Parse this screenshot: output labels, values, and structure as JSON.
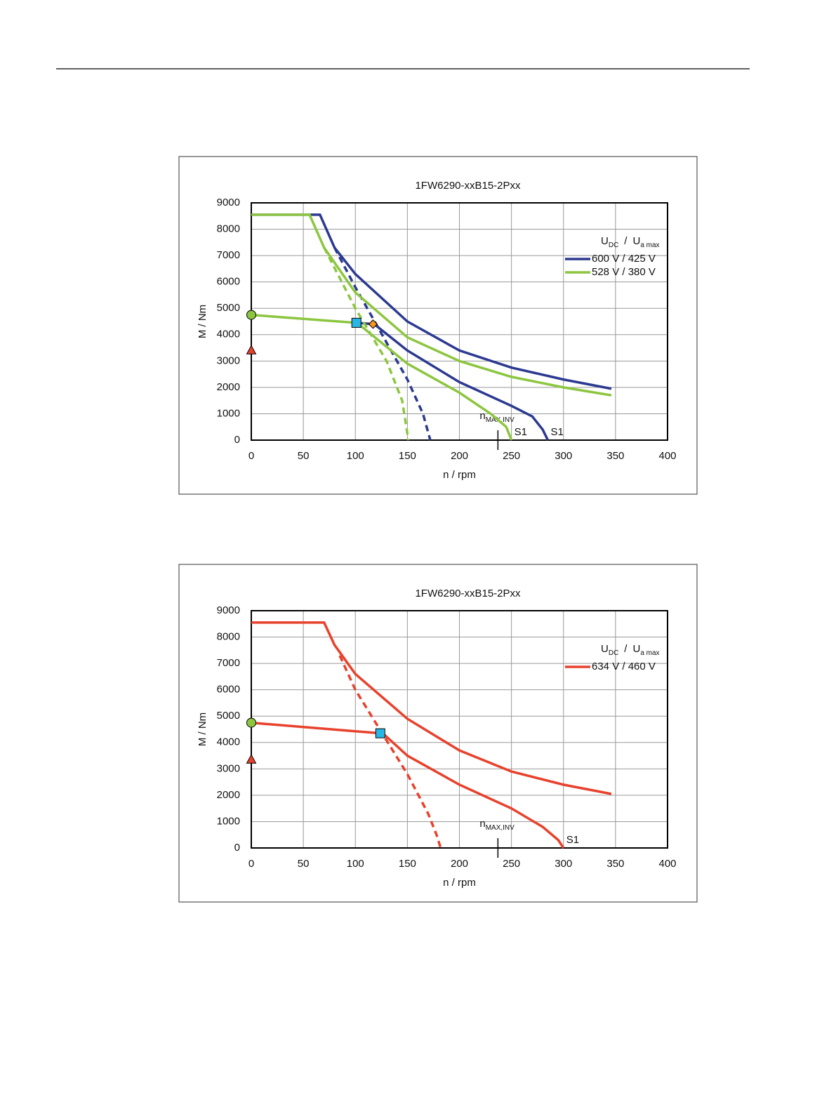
{
  "chart_data": [
    {
      "type": "line",
      "title": "1FW6290-xxB15-2Pxx",
      "x_label": "n / rpm",
      "y_label": "M / Nm",
      "xlim": [
        0,
        400
      ],
      "xticks": [
        0,
        50,
        100,
        150,
        200,
        250,
        300,
        350,
        400
      ],
      "ylim": [
        0,
        9000
      ],
      "yticks": [
        0,
        1000,
        2000,
        3000,
        4000,
        5000,
        6000,
        7000,
        8000,
        9000
      ],
      "grid": true,
      "legend_title": {
        "u1": "U",
        "sub1": "DC",
        "sep": "/",
        "u2": "U",
        "sub2": "a max"
      },
      "limit_marker": {
        "text": "n",
        "sub": "MAX,INV",
        "value": 237
      },
      "series": [
        {
          "name": "600 V / 425 V",
          "color": "#2b3990",
          "style": "solid",
          "x": [
            0,
            66,
            80,
            100,
            150,
            200,
            250,
            300,
            346
          ],
          "values": [
            8550,
            8550,
            7300,
            6300,
            4500,
            3400,
            2750,
            2300,
            1950
          ]
        },
        {
          "color": "#2b3990",
          "style": "solid",
          "label": "S1",
          "x": [
            115,
            150,
            200,
            250,
            270,
            280,
            285
          ],
          "values": [
            4500,
            3400,
            2200,
            1300,
            900,
            400,
            0
          ]
        },
        {
          "color": "#2b3990",
          "style": "dashed",
          "x": [
            80,
            100,
            120,
            150,
            165,
            172
          ],
          "values": [
            7300,
            5800,
            4400,
            2300,
            1000,
            0
          ]
        },
        {
          "color": "#2b3990",
          "style": "solid",
          "x": [
            101,
            117
          ],
          "values": [
            4450,
            4400
          ]
        },
        {
          "name": "528 V / 380 V",
          "color": "#8cc63f",
          "style": "solid",
          "x": [
            0,
            56,
            70,
            100,
            150,
            200,
            250,
            300,
            346
          ],
          "values": [
            8550,
            8550,
            7300,
            5600,
            3900,
            3000,
            2400,
            2000,
            1700
          ]
        },
        {
          "color": "#8cc63f",
          "style": "solid",
          "label": "S1",
          "x": [
            100,
            150,
            200,
            230,
            245,
            250
          ],
          "values": [
            4500,
            2900,
            1800,
            1000,
            500,
            0
          ]
        },
        {
          "color": "#8cc63f",
          "style": "dashed",
          "x": [
            70,
            100,
            130,
            145,
            151
          ],
          "values": [
            7300,
            5000,
            3000,
            1500,
            0
          ]
        },
        {
          "color": "#8cc63f",
          "style": "solid",
          "x": [
            0,
            101
          ],
          "values": [
            4750,
            4450
          ]
        }
      ],
      "markers": [
        {
          "shape": "circle",
          "color": "#8cc63f",
          "x": 0,
          "y": 4750
        },
        {
          "shape": "triangle",
          "color": "#e8412c",
          "x": 0,
          "y": 3400
        },
        {
          "shape": "square",
          "color": "#29b6e6",
          "x": 101,
          "y": 4450
        },
        {
          "shape": "diamond",
          "color": "#f7941d",
          "x": 117,
          "y": 4400
        }
      ]
    },
    {
      "type": "line",
      "title": "1FW6290-xxB15-2Pxx",
      "x_label": "n / rpm",
      "y_label": "M / Nm",
      "xlim": [
        0,
        400
      ],
      "xticks": [
        0,
        50,
        100,
        150,
        200,
        250,
        300,
        350,
        400
      ],
      "ylim": [
        0,
        9000
      ],
      "yticks": [
        0,
        1000,
        2000,
        3000,
        4000,
        5000,
        6000,
        7000,
        8000,
        9000
      ],
      "grid": true,
      "legend_title": {
        "u1": "U",
        "sub1": "DC",
        "sep": "/",
        "u2": "U",
        "sub2": "a max"
      },
      "limit_marker": {
        "text": "n",
        "sub": "MAX,INV",
        "value": 237
      },
      "series": [
        {
          "name": "634 V / 460 V",
          "color": "#e8412c",
          "style": "solid",
          "x": [
            0,
            70,
            80,
            100,
            150,
            200,
            250,
            300,
            346
          ],
          "values": [
            8550,
            8550,
            7700,
            6600,
            4900,
            3700,
            2900,
            2400,
            2050
          ]
        },
        {
          "color": "#e8412c",
          "style": "solid",
          "label": "S1",
          "x": [
            125,
            150,
            200,
            250,
            280,
            295,
            300
          ],
          "values": [
            4400,
            3500,
            2400,
            1500,
            800,
            300,
            0
          ]
        },
        {
          "color": "#e8412c",
          "style": "dashed",
          "x": [
            85,
            100,
            125,
            150,
            170,
            178,
            182
          ],
          "values": [
            7300,
            6000,
            4400,
            2800,
            1300,
            500,
            0
          ]
        },
        {
          "color": "#e8412c",
          "style": "solid",
          "x": [
            0,
            124
          ],
          "values": [
            4750,
            4350
          ]
        }
      ],
      "markers": [
        {
          "shape": "circle",
          "color": "#8cc63f",
          "x": 0,
          "y": 4750
        },
        {
          "shape": "triangle",
          "color": "#e8412c",
          "x": 0,
          "y": 3350
        },
        {
          "shape": "square",
          "color": "#29b6e6",
          "x": 124,
          "y": 4350
        }
      ]
    }
  ]
}
